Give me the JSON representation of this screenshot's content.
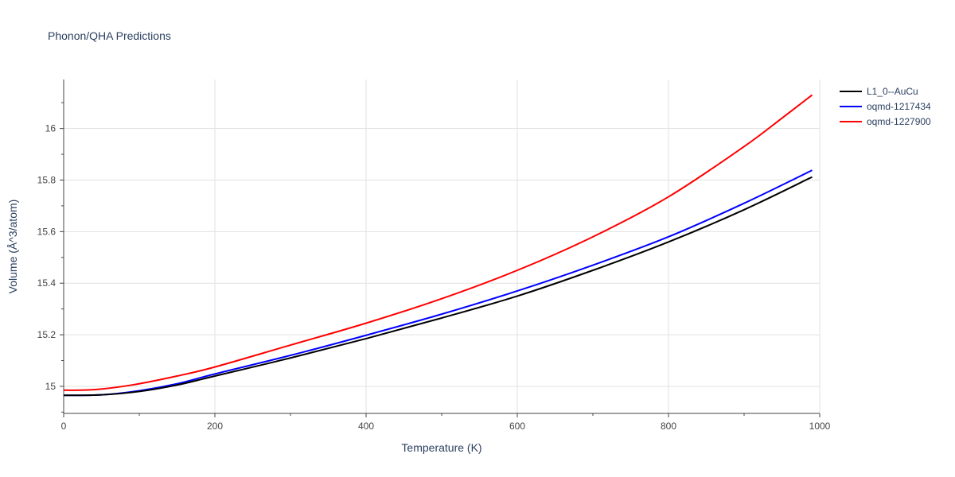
{
  "chart_data": {
    "type": "line",
    "title": "Phonon/QHA Predictions",
    "xlabel": "Temperature (K)",
    "ylabel": "Volume (Å^3/atom)",
    "xlim": [
      0,
      1000
    ],
    "ylim": [
      14.895,
      16.19
    ],
    "xticks": [
      0,
      200,
      400,
      600,
      800,
      1000
    ],
    "yticks": [
      15,
      15.2,
      15.4,
      15.6,
      15.8,
      16
    ],
    "xtick_labels": [
      "0",
      "200",
      "400",
      "600",
      "800",
      "1000"
    ],
    "ytick_labels": [
      "15",
      "15.2",
      "15.4",
      "15.6",
      "15.8",
      "16"
    ],
    "grid": true,
    "legend_position": "top-right",
    "series": [
      {
        "name": "L1_0--AuCu",
        "color": "#000000",
        "x": [
          0,
          50,
          100,
          150,
          200,
          300,
          400,
          500,
          600,
          700,
          800,
          900,
          990
        ],
        "y": [
          14.965,
          14.967,
          14.98,
          15.005,
          15.04,
          15.11,
          15.185,
          15.265,
          15.35,
          15.45,
          15.56,
          15.685,
          15.812
        ]
      },
      {
        "name": "oqmd-1217434",
        "color": "#0000ff",
        "x": [
          0,
          50,
          100,
          150,
          200,
          300,
          400,
          500,
          600,
          700,
          800,
          900,
          990
        ],
        "y": [
          14.965,
          14.967,
          14.983,
          15.01,
          15.048,
          15.12,
          15.198,
          15.28,
          15.37,
          15.47,
          15.58,
          15.71,
          15.838
        ]
      },
      {
        "name": "oqmd-1227900",
        "color": "#ff0000",
        "x": [
          0,
          40,
          90,
          150,
          200,
          300,
          400,
          500,
          600,
          700,
          800,
          900,
          950,
          990
        ],
        "y": [
          14.985,
          14.987,
          15.005,
          15.04,
          15.075,
          15.16,
          15.245,
          15.34,
          15.45,
          15.58,
          15.735,
          15.93,
          16.04,
          16.13
        ]
      }
    ]
  }
}
